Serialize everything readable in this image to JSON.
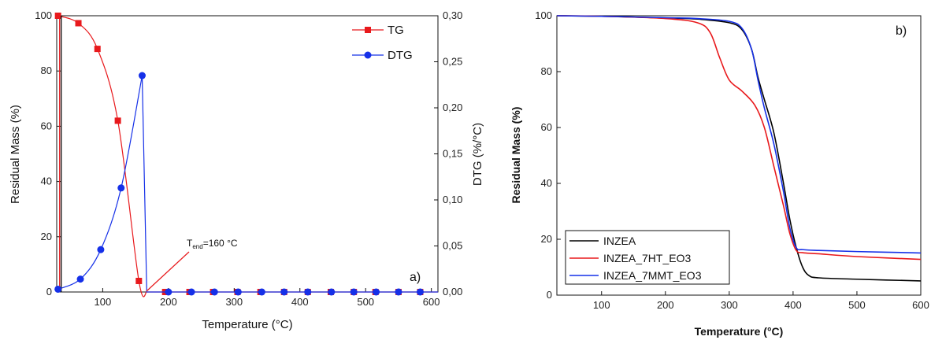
{
  "chart_data": [
    {
      "type": "line",
      "panel_label": "a)",
      "xlabel": "Temperature (°C)",
      "ylabel": "Residual Mass (%)",
      "y2label": "DTG (%/°C)",
      "xlim": [
        30,
        610
      ],
      "ylim": [
        0,
        100
      ],
      "y2lim": [
        0,
        0.3
      ],
      "xticks": [
        100,
        200,
        300,
        400,
        500,
        600
      ],
      "yticks": [
        0,
        20,
        40,
        60,
        80,
        100
      ],
      "y2ticks": [
        "0,00",
        "0,05",
        "0,10",
        "0,15",
        "0,20",
        "0,25",
        "0,30"
      ],
      "legend_position": "top-right",
      "annotation": {
        "main": "T",
        "sub": "end",
        "rest": "=160 °C",
        "x": 160,
        "y": 0
      },
      "series": [
        {
          "name": "TG",
          "color": "#e8191c",
          "marker": "square",
          "axis": "left",
          "x": [
            32,
            63,
            92,
            123,
            155,
            195,
            232,
            268,
            305,
            340,
            376,
            412,
            447,
            482,
            515,
            550,
            583
          ],
          "y": [
            100,
            97.3,
            88,
            62,
            4,
            0,
            0,
            0,
            0,
            0,
            0,
            0,
            0,
            0,
            0,
            0,
            0
          ]
        },
        {
          "name": "DTG",
          "color": "#1530e8",
          "marker": "circle",
          "axis": "right",
          "x": [
            32,
            66,
            97,
            128,
            160,
            200,
            235,
            270,
            306,
            342,
            376,
            412,
            448,
            482,
            516,
            550,
            583
          ],
          "y": [
            0.003,
            0.014,
            0.046,
            0.113,
            0.235,
            0,
            0,
            0,
            0,
            0,
            0,
            0,
            0,
            0,
            0,
            0,
            0
          ]
        }
      ]
    },
    {
      "type": "line",
      "panel_label": "b)",
      "xlabel": "Temperature (°C)",
      "ylabel": "Residual Mass (%)",
      "xlim": [
        30,
        600
      ],
      "ylim": [
        0,
        100
      ],
      "xticks": [
        100,
        200,
        300,
        400,
        500,
        600
      ],
      "yticks": [
        0,
        20,
        40,
        60,
        80,
        100
      ],
      "legend_position": "bottom-left",
      "series": [
        {
          "name": "INZEA",
          "color": "#000000",
          "x": [
            30,
            100,
            200,
            250,
            300,
            320,
            335,
            345,
            355,
            370,
            385,
            395,
            405,
            415,
            425,
            440,
            500,
            600
          ],
          "y": [
            100,
            99.8,
            99.2,
            98.8,
            97.5,
            95,
            88,
            78,
            70,
            58,
            40,
            27,
            17,
            10,
            7,
            6.2,
            5.7,
            5.1
          ]
        },
        {
          "name": "INZEA_7HT_EO3",
          "color": "#e8191c",
          "x": [
            30,
            100,
            200,
            250,
            270,
            285,
            300,
            320,
            340,
            355,
            370,
            385,
            395,
            405,
            415,
            440,
            500,
            600
          ],
          "y": [
            100,
            99.8,
            99,
            97.5,
            94,
            85,
            77,
            73,
            68,
            60,
            46,
            32,
            22,
            16,
            15.2,
            14.8,
            13.8,
            12.8
          ]
        },
        {
          "name": "INZEA_7MMT_EO3",
          "color": "#1530e8",
          "x": [
            30,
            100,
            200,
            250,
            300,
            320,
            335,
            345,
            355,
            370,
            385,
            395,
            405,
            415,
            440,
            500,
            600
          ],
          "y": [
            100,
            99.8,
            99.3,
            99,
            98,
            95.5,
            88,
            77,
            67,
            54,
            37,
            24,
            17,
            16.3,
            16,
            15.6,
            15.1
          ]
        }
      ]
    }
  ]
}
